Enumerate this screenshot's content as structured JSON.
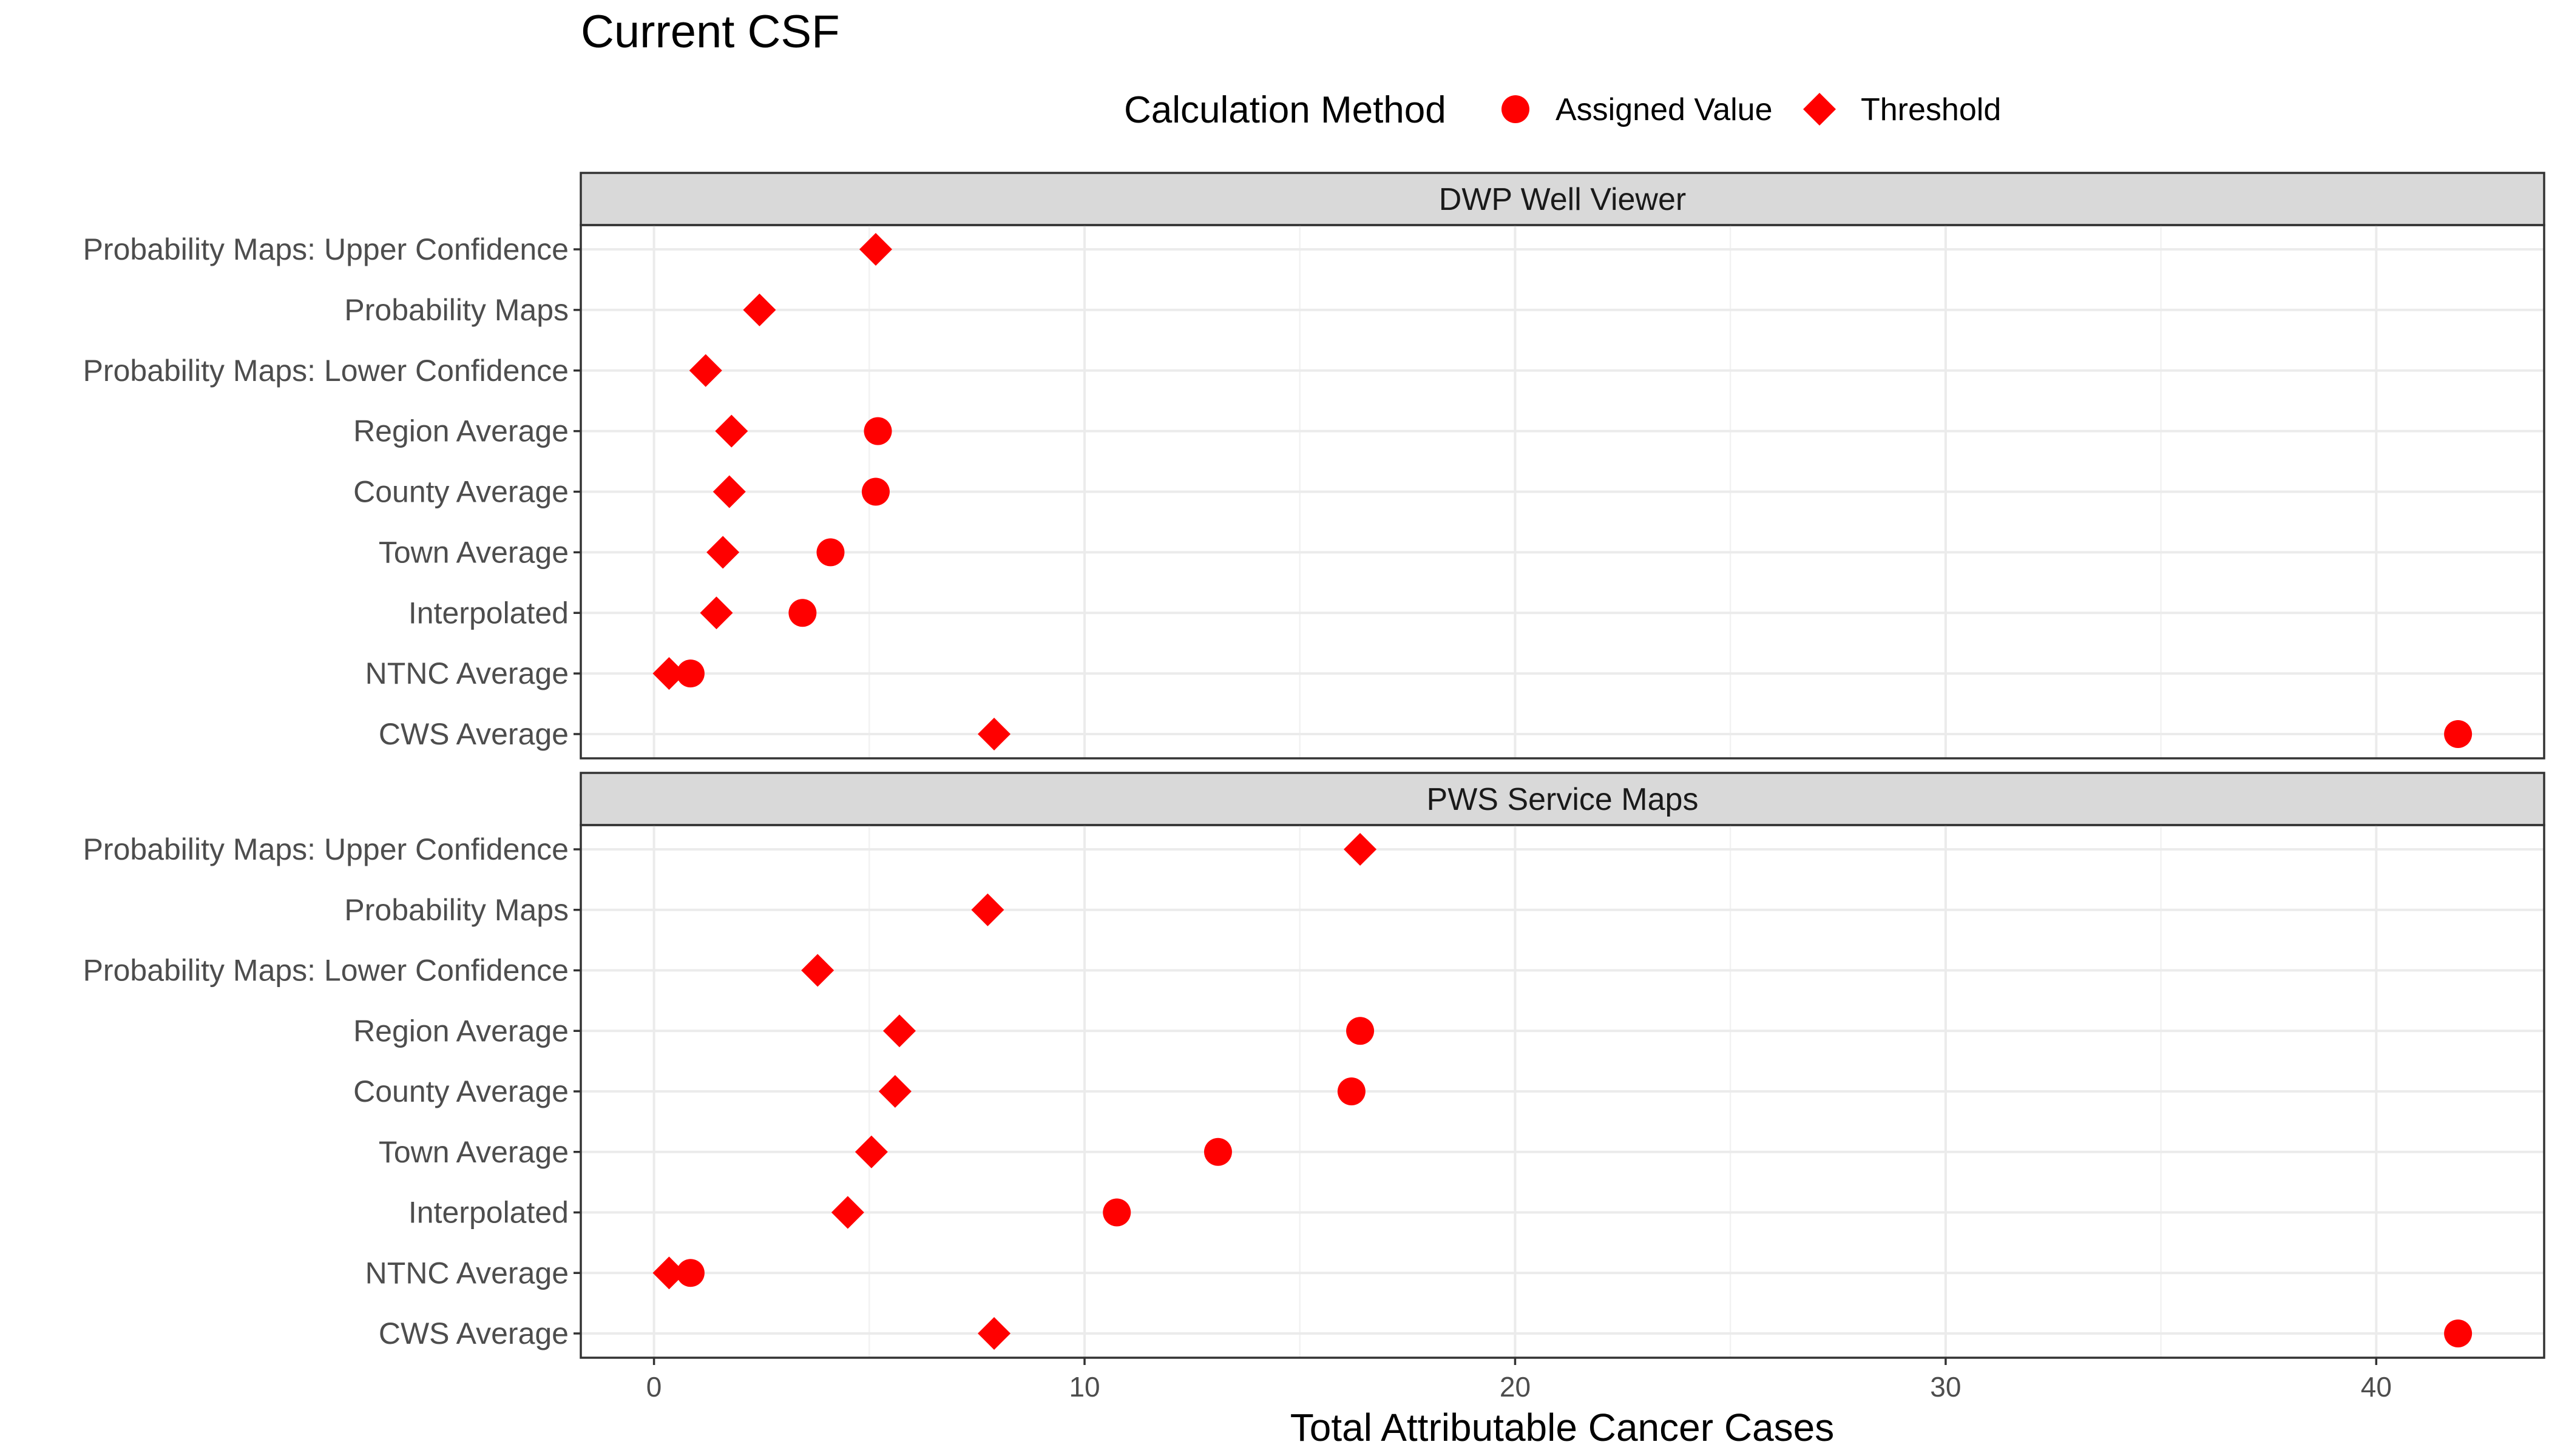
{
  "chart_data": {
    "type": "scatter",
    "title": "Current CSF",
    "xlabel": "Total Attributable Cancer Cases",
    "xlim": [
      -1.7,
      43.9
    ],
    "x_ticks": [
      0,
      10,
      20,
      30,
      40
    ],
    "grid": true,
    "legend": {
      "title": "Calculation Method",
      "position": "top",
      "entries": [
        {
          "name": "Assigned Value",
          "shape": "circle",
          "color": "#ff0000"
        },
        {
          "name": "Threshold",
          "shape": "diamond",
          "color": "#ff0000"
        }
      ]
    },
    "categories": [
      "Probability Maps: Upper Confidence",
      "Probability Maps",
      "Probability Maps: Lower Confidence",
      "Region Average",
      "County Average",
      "Town Average",
      "Interpolated",
      "NTNC Average",
      "CWS Average"
    ],
    "panels": [
      {
        "name": "DWP Well Viewer",
        "series": [
          {
            "name": "Assigned Value",
            "values": [
              null,
              null,
              null,
              5.2,
              5.15,
              4.1,
              3.45,
              0.85,
              41.9
            ]
          },
          {
            "name": "Threshold",
            "values": [
              5.15,
              2.45,
              1.2,
              1.8,
              1.75,
              1.6,
              1.45,
              0.35,
              7.9
            ]
          }
        ]
      },
      {
        "name": "PWS Service Maps",
        "series": [
          {
            "name": "Assigned Value",
            "values": [
              null,
              null,
              null,
              16.4,
              16.2,
              13.1,
              10.75,
              0.85,
              41.9
            ]
          },
          {
            "name": "Threshold",
            "values": [
              16.4,
              7.75,
              3.8,
              5.7,
              5.6,
              5.05,
              4.5,
              0.35,
              7.9
            ]
          }
        ]
      }
    ],
    "colors": {
      "points": "#ff0000"
    }
  }
}
